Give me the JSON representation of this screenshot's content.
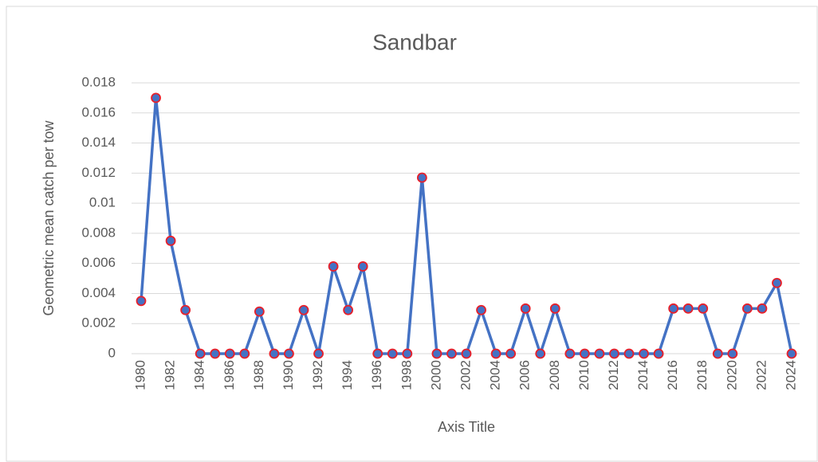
{
  "chart_data": {
    "type": "line",
    "title": "Sandbar",
    "ylabel": "Geometric mean catch per tow",
    "xlabel": "Axis Title",
    "categories": [
      "1980",
      null,
      "1982",
      null,
      "1984",
      null,
      "1986",
      null,
      "1988",
      null,
      "1990",
      null,
      "1992",
      null,
      "1994",
      null,
      "1996",
      null,
      "1998",
      null,
      "2000",
      null,
      "2002",
      null,
      "2004",
      null,
      "2006",
      null,
      "2008",
      null,
      "2010",
      null,
      "2012",
      null,
      "2014",
      null,
      "2016",
      null,
      "2018",
      null,
      "2020",
      null,
      "2022",
      null,
      "2024"
    ],
    "values": [
      0.0035,
      0.017,
      0.0075,
      0.0029,
      0,
      0,
      0,
      0,
      0.0028,
      0,
      0,
      0.0029,
      0,
      0.0058,
      0.0029,
      0.0058,
      0,
      0,
      0,
      0.0117,
      0,
      0,
      0,
      0.0029,
      0,
      0,
      0.003,
      0,
      0.003,
      0,
      0,
      0,
      0,
      0,
      0,
      0,
      0.003,
      0.003,
      0.003,
      0,
      0,
      0.003,
      0.003,
      0.0047,
      0
    ],
    "color": "#4472c4",
    "marker_edge_color": "#e8202a",
    "ylim": [
      0,
      0.018
    ],
    "yticks": [
      0,
      0.002,
      0.004,
      0.006,
      0.008,
      0.01,
      0.012,
      0.014,
      0.016,
      0.018
    ],
    "grid": true
  }
}
